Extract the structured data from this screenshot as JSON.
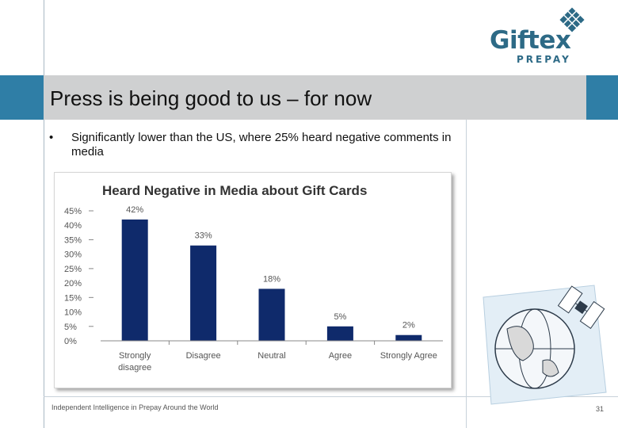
{
  "slide": {
    "title": "Press is being good to us – for now",
    "bullet": "Significantly lower than the US, where 25% heard negative comments in media",
    "bullet_marker": "•",
    "footer": "Independent Intelligence in Prepay Around the World",
    "page_number": "31"
  },
  "logo": {
    "word": "Giftex",
    "sub": "PREPAY"
  },
  "colors": {
    "bar": "#0f2a6b",
    "title_band": "#cfd0d1",
    "accent": "#2f7ea6",
    "logo": "#2d6a86"
  },
  "chart_data": {
    "type": "bar",
    "title": "Heard Negative in Media about Gift Cards",
    "categories": [
      "Strongly disagree",
      "Disagree",
      "Neutral",
      "Agree",
      "Strongly Agree"
    ],
    "category_lines": [
      [
        "Strongly",
        "disagree"
      ],
      [
        "Disagree"
      ],
      [
        "Neutral"
      ],
      [
        "Agree"
      ],
      [
        "Strongly Agree"
      ]
    ],
    "values": [
      42,
      33,
      18,
      5,
      2
    ],
    "data_labels": [
      "42%",
      "33%",
      "18%",
      "5%",
      "2%"
    ],
    "yticks": [
      "0%",
      "5%",
      "10%",
      "15%",
      "20%",
      "25%",
      "30%",
      "35%",
      "40%",
      "45%"
    ],
    "ylim": [
      0,
      45
    ],
    "xlabel": "",
    "ylabel": ""
  }
}
